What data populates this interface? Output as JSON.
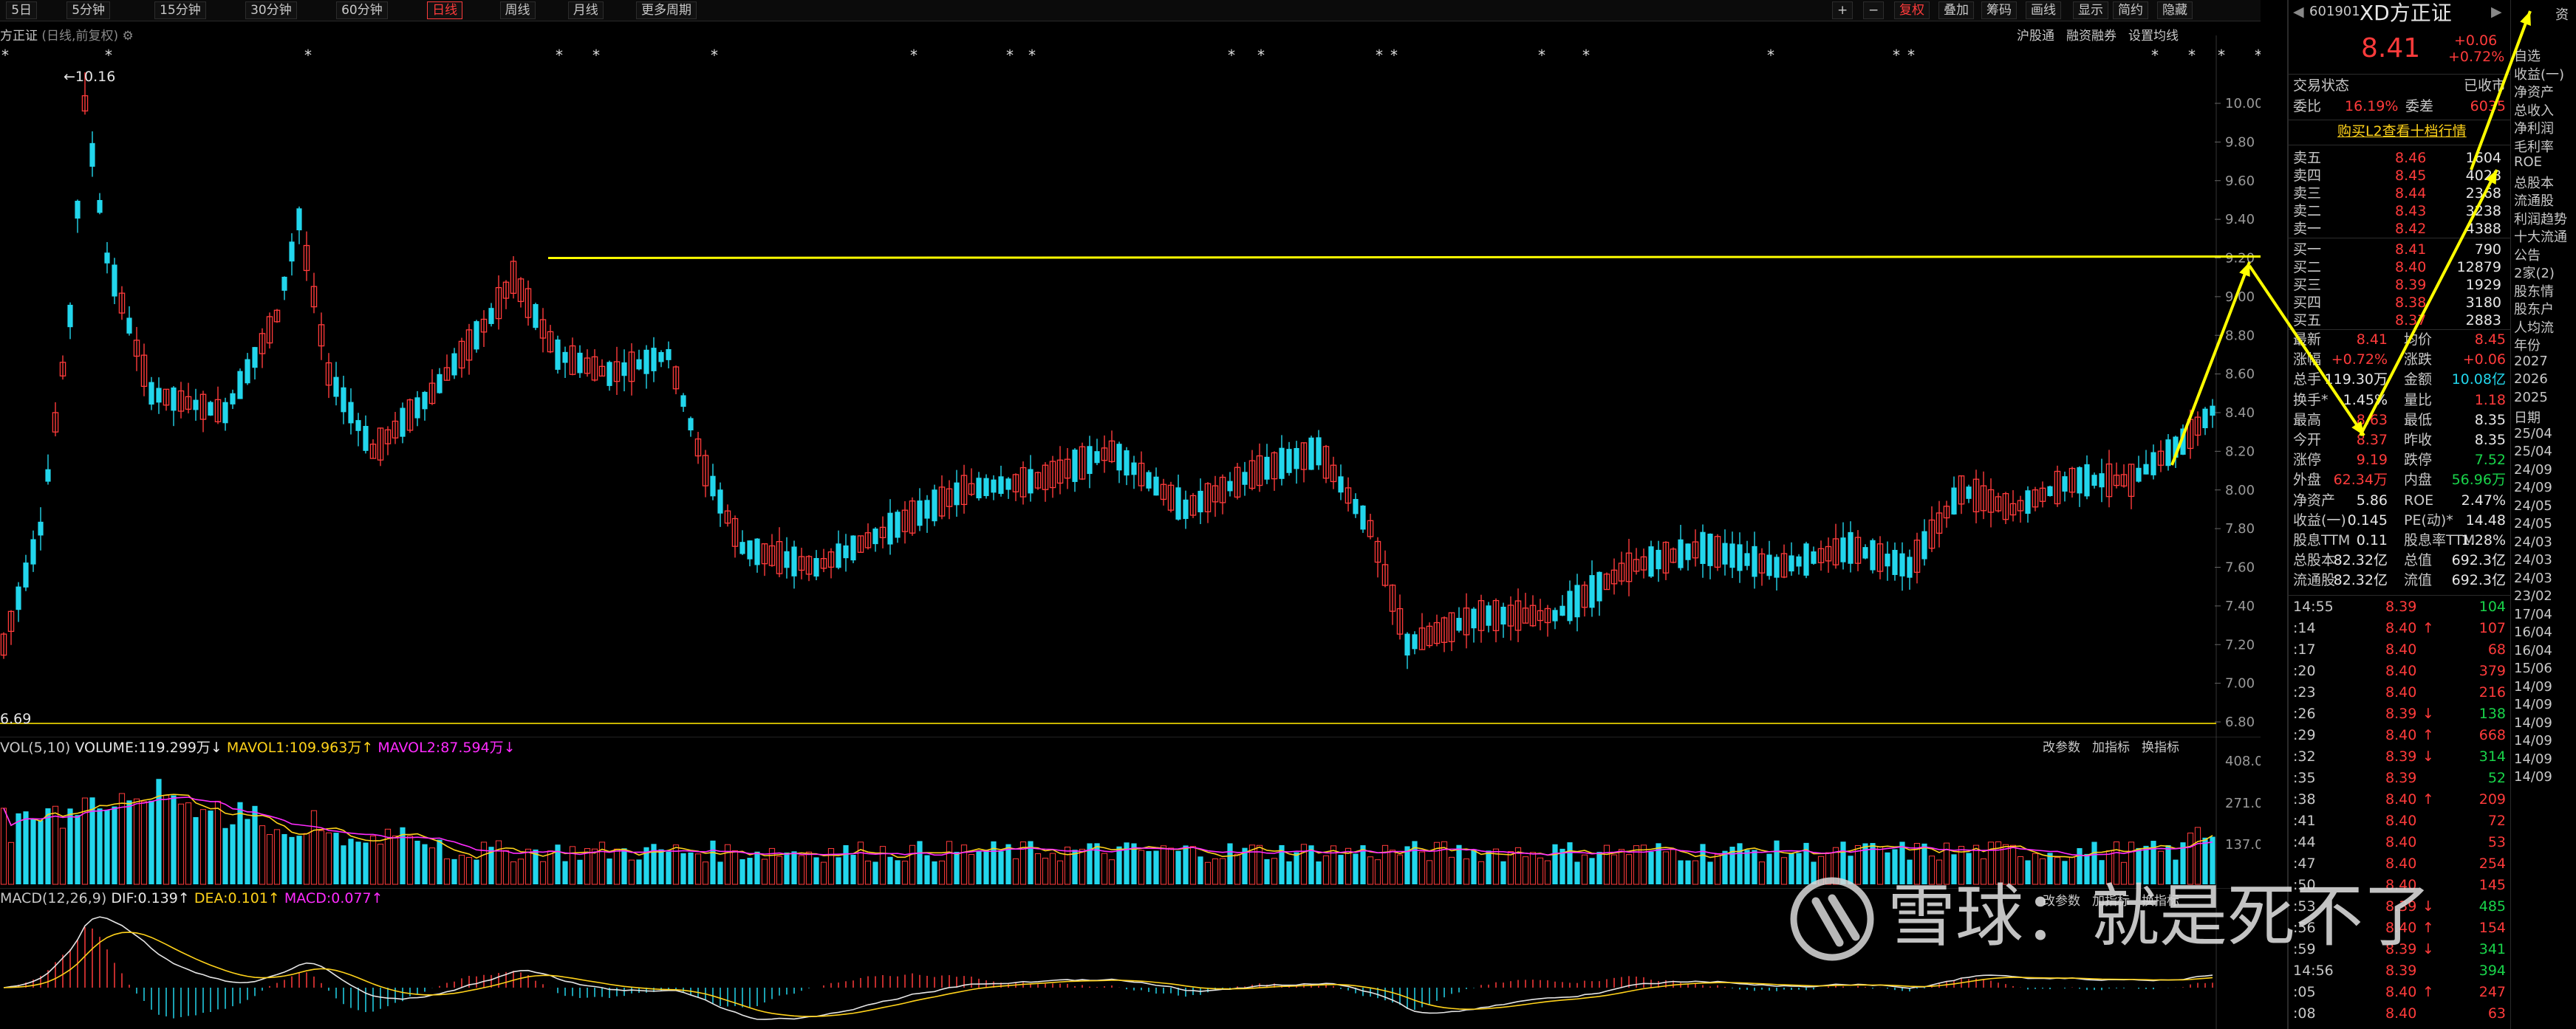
{
  "toolbar": {
    "buttons": [
      "5日",
      "5分钟",
      "15分钟",
      "30分钟",
      "60分钟",
      "日线",
      "周线",
      "月线",
      "更多周期"
    ],
    "active": "日线",
    "right_buttons": [
      "+",
      "−",
      "复权",
      "叠加",
      "筹码",
      "画线",
      "显示",
      "简约",
      "隐藏"
    ]
  },
  "chart_header": {
    "title": "方正证",
    "subtitle": "(日线,前复权)",
    "links": [
      "沪股通",
      "融资融券",
      "设置均线"
    ]
  },
  "main_chart": {
    "high_label": "10.16",
    "low_label": "6.69",
    "y_ticks": [
      "10.00",
      "9.80",
      "9.60",
      "9.40",
      "9.20",
      "9.00",
      "8.80",
      "8.60",
      "8.40",
      "8.20",
      "8.00",
      "7.80",
      "7.60",
      "7.40",
      "7.20",
      "7.00",
      "6.80"
    ]
  },
  "volume_panel": {
    "label_prefix": "VOL(5,10)",
    "volume": "VOLUME:119.299万",
    "mavol1": "MAVOL1:109.963万",
    "mavol2": "MAVOL2:87.594万",
    "links": [
      "改参数",
      "加指标",
      "换指标"
    ],
    "y_ticks": [
      "408.00",
      "271.00",
      "137.00"
    ]
  },
  "macd_panel": {
    "label_prefix": "MACD(12,26,9)",
    "dif": "DIF:0.139",
    "dea": "DEA:0.101",
    "macd": "MACD:0.077",
    "links": [
      "改参数",
      "加指标",
      "换指标"
    ]
  },
  "quote": {
    "code": "601901",
    "name": "XD方正证",
    "price": "8.41",
    "change": "+0.06",
    "change_pct": "+0.72%",
    "status_label": "交易状态",
    "status_value": "已收市",
    "weibi_label": "委比",
    "weibi_value": "16.19%",
    "weicha_label": "委差",
    "weicha_value": "6035",
    "l2_link": "购买L2查看十档行情",
    "asks": [
      {
        "label": "卖五",
        "price": "8.46",
        "vol": "1604"
      },
      {
        "label": "卖四",
        "price": "8.45",
        "vol": "4028"
      },
      {
        "label": "卖三",
        "price": "8.44",
        "vol": "2368"
      },
      {
        "label": "卖二",
        "price": "8.43",
        "vol": "3238"
      },
      {
        "label": "卖一",
        "price": "8.42",
        "vol": "4388"
      }
    ],
    "bids": [
      {
        "label": "买一",
        "price": "8.41",
        "vol": "790"
      },
      {
        "label": "买二",
        "price": "8.40",
        "vol": "12879"
      },
      {
        "label": "买三",
        "price": "8.39",
        "vol": "1929"
      },
      {
        "label": "买四",
        "price": "8.38",
        "vol": "3180"
      },
      {
        "label": "买五",
        "price": "8.37",
        "vol": "2883"
      }
    ],
    "stats": [
      {
        "l1": "最新",
        "v1": "8.41",
        "c1": "red",
        "l2": "均价",
        "v2": "8.45",
        "c2": "red"
      },
      {
        "l1": "涨幅",
        "v1": "+0.72%",
        "c1": "red",
        "l2": "涨跌",
        "v2": "+0.06",
        "c2": "red"
      },
      {
        "l1": "总手",
        "v1": "119.30万",
        "c1": "wht",
        "l2": "金额",
        "v2": "10.08亿",
        "c2": "cyan"
      },
      {
        "l1": "换手*",
        "v1": "1.45%",
        "c1": "wht",
        "l2": "量比",
        "v2": "1.18",
        "c2": "red"
      },
      {
        "l1": "最高",
        "v1": "8.63",
        "c1": "red",
        "l2": "最低",
        "v2": "8.35",
        "c2": "wht"
      },
      {
        "l1": "今开",
        "v1": "8.37",
        "c1": "red",
        "l2": "昨收",
        "v2": "8.35",
        "c2": "wht"
      },
      {
        "l1": "涨停",
        "v1": "9.19",
        "c1": "red",
        "l2": "跌停",
        "v2": "7.52",
        "c2": "grn"
      },
      {
        "l1": "外盘",
        "v1": "62.34万",
        "c1": "red",
        "l2": "内盘",
        "v2": "56.96万",
        "c2": "grn"
      },
      {
        "l1": "净资产",
        "v1": "5.86",
        "c1": "wht",
        "l2": "ROE",
        "v2": "2.47%",
        "c2": "wht"
      },
      {
        "l1": "收益(一)",
        "v1": "0.145",
        "c1": "wht",
        "l2": "PE(动)*",
        "v2": "14.48",
        "c2": "wht"
      },
      {
        "l1": "股息TTM",
        "v1": "0.11",
        "c1": "wht",
        "l2": "股息率TTM",
        "v2": "1.28%",
        "c2": "wht"
      },
      {
        "l1": "总股本",
        "v1": "82.32亿",
        "c1": "wht",
        "l2": "总值",
        "v2": "692.3亿",
        "c2": "wht"
      },
      {
        "l1": "流通股",
        "v1": "82.32亿",
        "c1": "wht",
        "l2": "流值",
        "v2": "692.3亿",
        "c2": "wht"
      }
    ],
    "ticks": [
      {
        "t": "14:55",
        "p": "8.39",
        "v": "104",
        "pc": "red",
        "vc": "grn",
        "arrow": ""
      },
      {
        "t": ":14",
        "p": "8.40",
        "v": "107",
        "pc": "red",
        "vc": "red",
        "arrow": "↑"
      },
      {
        "t": ":17",
        "p": "8.40",
        "v": "68",
        "pc": "red",
        "vc": "red",
        "arrow": ""
      },
      {
        "t": ":20",
        "p": "8.40",
        "v": "379",
        "pc": "red",
        "vc": "red",
        "arrow": ""
      },
      {
        "t": ":23",
        "p": "8.40",
        "v": "216",
        "pc": "red",
        "vc": "red",
        "arrow": ""
      },
      {
        "t": ":26",
        "p": "8.39",
        "v": "138",
        "pc": "red",
        "vc": "grn",
        "arrow": "↓"
      },
      {
        "t": ":29",
        "p": "8.40",
        "v": "668",
        "pc": "red",
        "vc": "red",
        "arrow": "↑"
      },
      {
        "t": ":32",
        "p": "8.39",
        "v": "314",
        "pc": "red",
        "vc": "grn",
        "arrow": "↓"
      },
      {
        "t": ":35",
        "p": "8.39",
        "v": "52",
        "pc": "red",
        "vc": "grn",
        "arrow": ""
      },
      {
        "t": ":38",
        "p": "8.40",
        "v": "209",
        "pc": "red",
        "vc": "red",
        "arrow": "↑"
      },
      {
        "t": ":41",
        "p": "8.40",
        "v": "72",
        "pc": "red",
        "vc": "red",
        "arrow": ""
      },
      {
        "t": ":44",
        "p": "8.40",
        "v": "53",
        "pc": "red",
        "vc": "red",
        "arrow": ""
      },
      {
        "t": ":47",
        "p": "8.40",
        "v": "254",
        "pc": "red",
        "vc": "red",
        "arrow": ""
      },
      {
        "t": ":50",
        "p": "8.40",
        "v": "145",
        "pc": "red",
        "vc": "red",
        "arrow": ""
      },
      {
        "t": ":53",
        "p": "8.39",
        "v": "485",
        "pc": "red",
        "vc": "grn",
        "arrow": "↓"
      },
      {
        "t": ":56",
        "p": "8.40",
        "v": "154",
        "pc": "red",
        "vc": "red",
        "arrow": "↑"
      },
      {
        "t": ":59",
        "p": "8.39",
        "v": "341",
        "pc": "red",
        "vc": "grn",
        "arrow": "↓"
      },
      {
        "t": "14:56",
        "p": "8.39",
        "v": "394",
        "pc": "red",
        "vc": "grn",
        "arrow": ""
      },
      {
        "t": ":05",
        "p": "8.40",
        "v": "247",
        "pc": "red",
        "vc": "red",
        "arrow": "↑"
      },
      {
        "t": ":08",
        "p": "8.40",
        "v": "63",
        "pc": "red",
        "vc": "red",
        "arrow": ""
      }
    ]
  },
  "side": {
    "tab_top": "资",
    "items": [
      "自选",
      "收益(一)",
      "净资产",
      "总收入",
      "净利润",
      "毛利率",
      "ROE",
      "总股本",
      "流通股",
      "利润趋势",
      "十大流通",
      "公告",
      "2家(2)",
      "股东情",
      "股东户",
      "人均流",
      "年份",
      "2027",
      "2026",
      "2025",
      "日期",
      "25/04",
      "25/04",
      "24/09",
      "24/09",
      "24/05",
      "24/05",
      "24/03",
      "24/03",
      "24/03",
      "23/02",
      "17/04",
      "16/04",
      "16/04",
      "15/06",
      "14/09",
      "14/09",
      "14/09",
      "14/09",
      "14/09",
      "14/09"
    ]
  },
  "watermark": {
    "text": "雪球：就是死不了"
  },
  "colors": {
    "up": "#ff3b3b",
    "down": "#22d6ec",
    "ma5": "#ffffff",
    "ma10": "#ffd21a",
    "ma20": "#ff2bff",
    "annot": "#ffff00"
  }
}
